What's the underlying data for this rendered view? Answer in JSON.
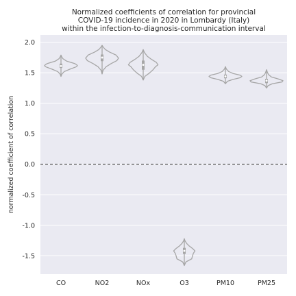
{
  "chart_data": {
    "type": "violin",
    "title_lines": [
      "Normalized coefficients of correlation for provincial",
      "COVID-19 incidence in 2020 in Lombardy (Italy)",
      "within the infection-to-diagnosis-communication interval"
    ],
    "xlabel": "",
    "ylabel": "normalized coefficient of correlation",
    "categories": [
      "CO",
      "NO2",
      "NOx",
      "O3",
      "PM10",
      "PM25"
    ],
    "ylim": [
      -1.8,
      2.12
    ],
    "yticks": [
      -1.5,
      -1.0,
      -0.5,
      0.0,
      0.5,
      1.0,
      1.5,
      2.0
    ],
    "ytick_labels": [
      "-1.5",
      "-1.0",
      "-0.5",
      "0.0",
      "0.5",
      "1.0",
      "1.5",
      "2.0"
    ],
    "reference_line": {
      "y": 0.0,
      "style": "dashed"
    },
    "grid": "horizontal",
    "colors": {
      "background": "#eaeaf2",
      "grid": "#ffffff",
      "violin": "#a6a6a6",
      "refline": "#262626"
    },
    "violins": [
      {
        "category": "CO",
        "min": 1.44,
        "max": 1.79,
        "q1": 1.58,
        "median": 1.61,
        "q3": 1.65,
        "density": [
          [
            1.44,
            0.0
          ],
          [
            1.48,
            0.06
          ],
          [
            1.52,
            0.2
          ],
          [
            1.56,
            0.55
          ],
          [
            1.6,
            0.95
          ],
          [
            1.62,
            1.0
          ],
          [
            1.65,
            0.85
          ],
          [
            1.69,
            0.35
          ],
          [
            1.73,
            0.12
          ],
          [
            1.76,
            0.05
          ],
          [
            1.79,
            0.0
          ]
        ]
      },
      {
        "category": "NO2",
        "min": 1.48,
        "max": 1.95,
        "q1": 1.69,
        "median": 1.75,
        "q3": 1.8,
        "density": [
          [
            1.48,
            0.0
          ],
          [
            1.54,
            0.06
          ],
          [
            1.6,
            0.25
          ],
          [
            1.65,
            0.55
          ],
          [
            1.7,
            0.9
          ],
          [
            1.74,
            1.0
          ],
          [
            1.79,
            0.85
          ],
          [
            1.84,
            0.45
          ],
          [
            1.88,
            0.2
          ],
          [
            1.92,
            0.07
          ],
          [
            1.95,
            0.0
          ]
        ]
      },
      {
        "category": "NOx",
        "min": 1.38,
        "max": 1.88,
        "q1": 1.55,
        "median": 1.63,
        "q3": 1.7,
        "density": [
          [
            1.38,
            0.0
          ],
          [
            1.44,
            0.1
          ],
          [
            1.5,
            0.4
          ],
          [
            1.55,
            0.6
          ],
          [
            1.6,
            0.75
          ],
          [
            1.63,
            0.9
          ],
          [
            1.67,
            0.8
          ],
          [
            1.72,
            0.5
          ],
          [
            1.77,
            0.25
          ],
          [
            1.83,
            0.08
          ],
          [
            1.88,
            0.0
          ]
        ]
      },
      {
        "category": "O3",
        "min": -1.66,
        "max": -1.22,
        "q1": -1.47,
        "median": -1.42,
        "q3": -1.37,
        "density": [
          [
            -1.66,
            0.0
          ],
          [
            -1.6,
            0.1
          ],
          [
            -1.55,
            0.45
          ],
          [
            -1.5,
            0.5
          ],
          [
            -1.46,
            0.55
          ],
          [
            -1.42,
            0.65
          ],
          [
            -1.38,
            0.5
          ],
          [
            -1.34,
            0.3
          ],
          [
            -1.3,
            0.15
          ],
          [
            -1.26,
            0.05
          ],
          [
            -1.22,
            0.0
          ]
        ]
      },
      {
        "category": "PM10",
        "min": 1.32,
        "max": 1.6,
        "q1": 1.41,
        "median": 1.44,
        "q3": 1.47,
        "density": [
          [
            1.32,
            0.0
          ],
          [
            1.36,
            0.12
          ],
          [
            1.39,
            0.45
          ],
          [
            1.42,
            0.9
          ],
          [
            1.44,
            1.0
          ],
          [
            1.46,
            0.9
          ],
          [
            1.49,
            0.45
          ],
          [
            1.52,
            0.2
          ],
          [
            1.56,
            0.06
          ],
          [
            1.6,
            0.0
          ]
        ]
      },
      {
        "category": "PM25",
        "min": 1.25,
        "max": 1.55,
        "q1": 1.33,
        "median": 1.37,
        "q3": 1.4,
        "density": [
          [
            1.25,
            0.0
          ],
          [
            1.29,
            0.1
          ],
          [
            1.32,
            0.35
          ],
          [
            1.35,
            0.95
          ],
          [
            1.37,
            1.0
          ],
          [
            1.4,
            0.7
          ],
          [
            1.43,
            0.3
          ],
          [
            1.47,
            0.12
          ],
          [
            1.51,
            0.05
          ],
          [
            1.55,
            0.0
          ]
        ]
      }
    ]
  }
}
